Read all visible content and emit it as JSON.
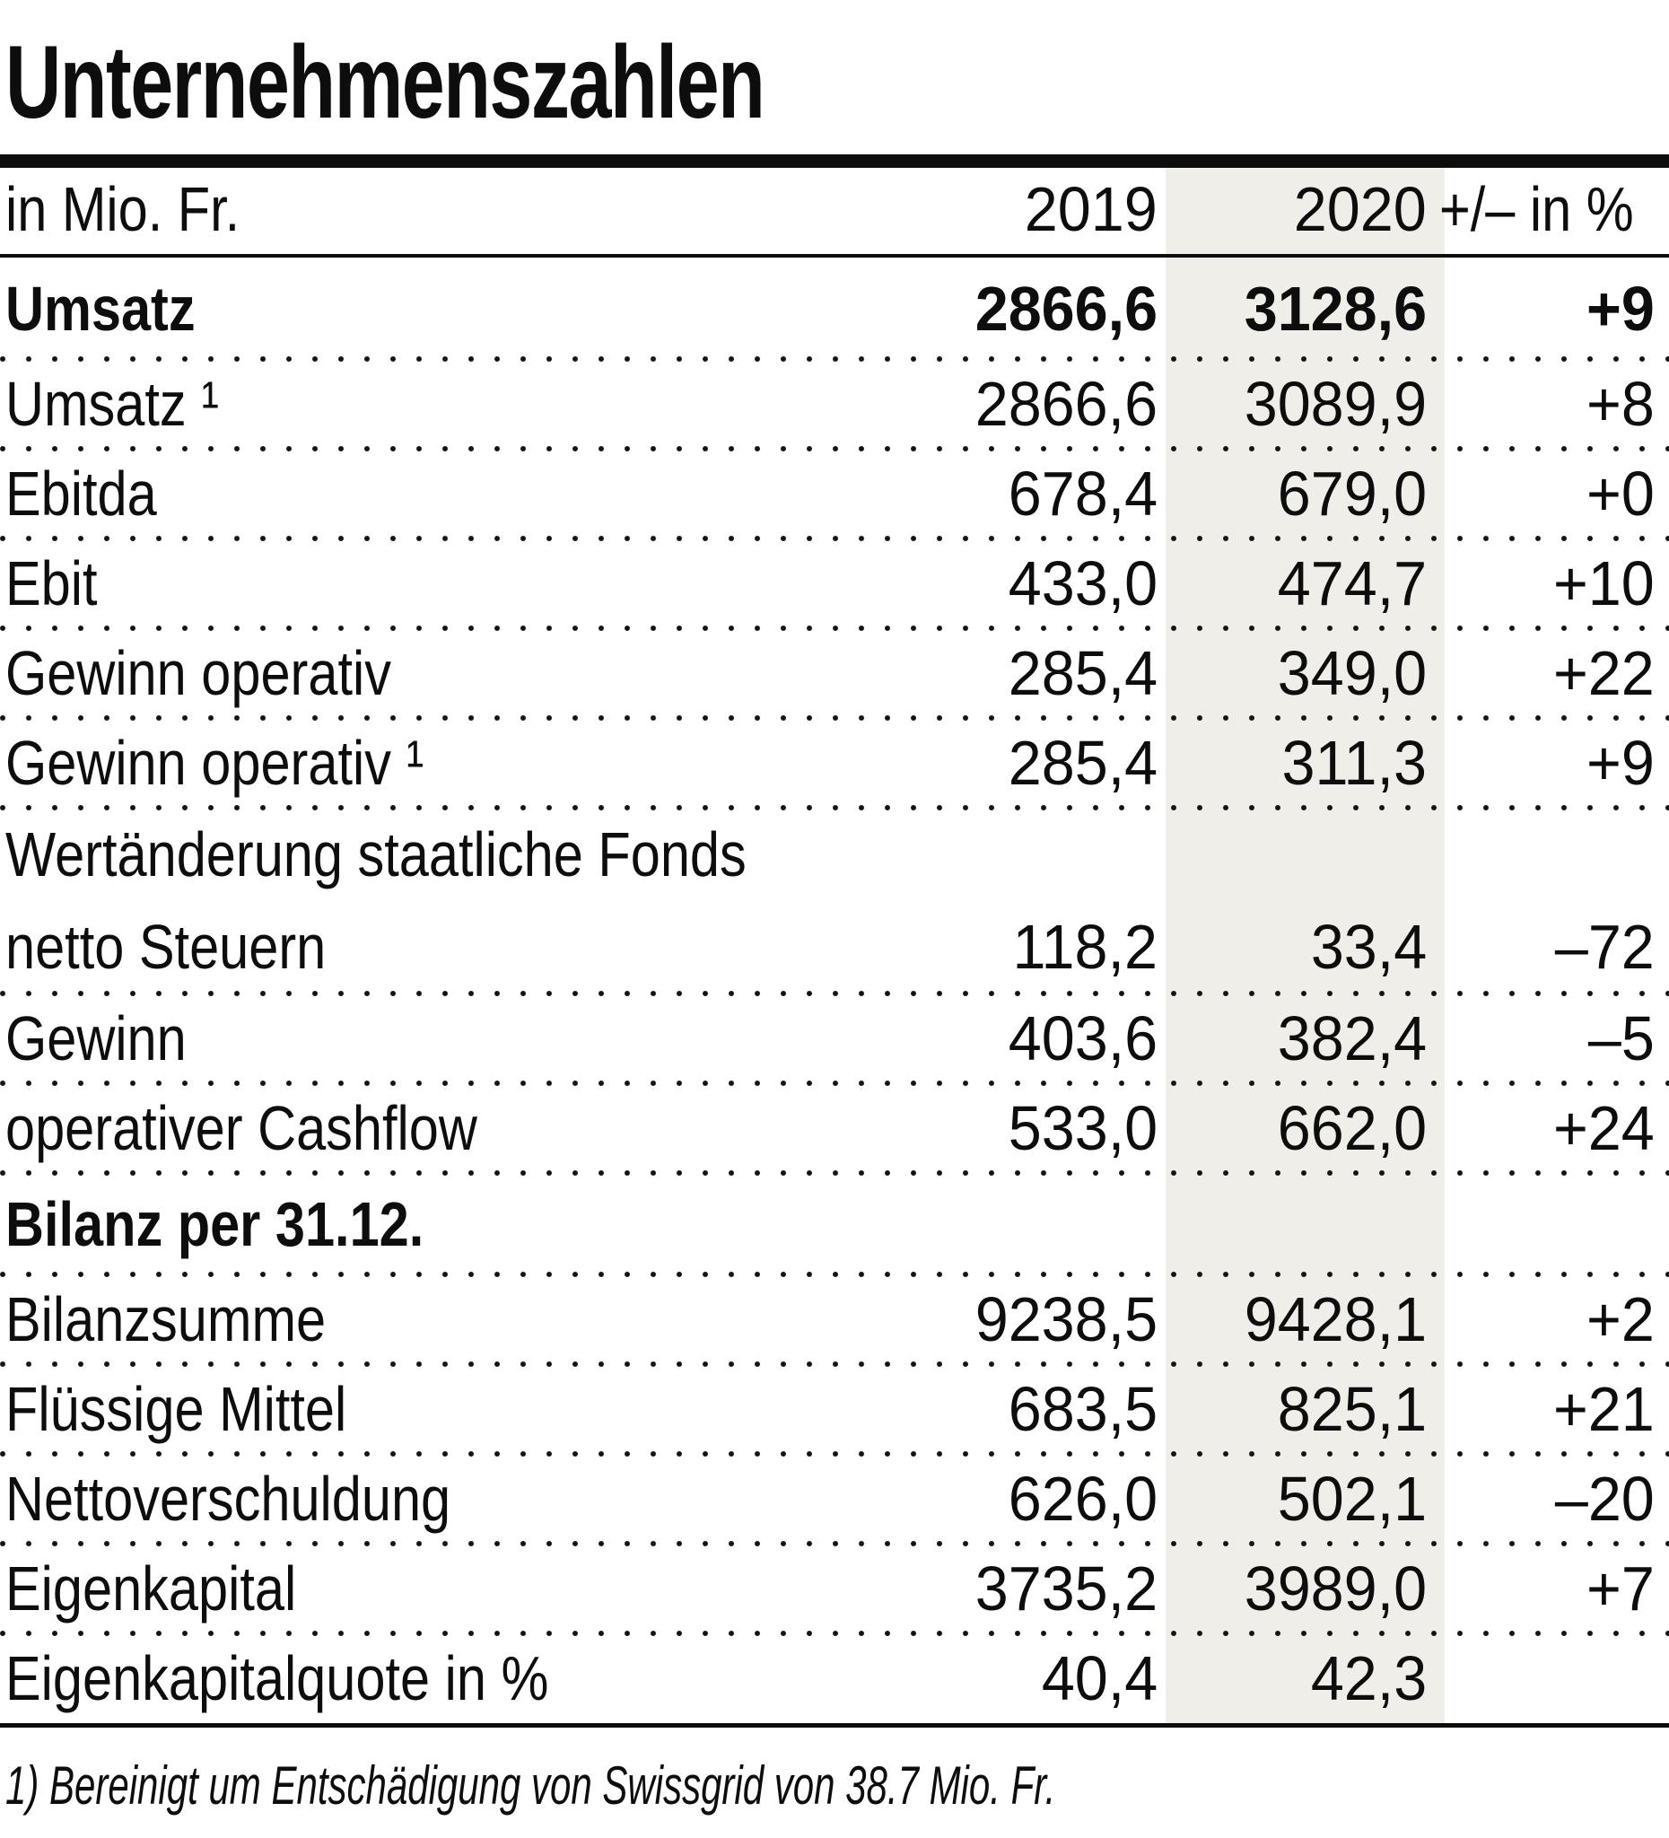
{
  "colors": {
    "band": "#F0EEE8",
    "text": "#0D0D0D",
    "rule": "#0D0D0D"
  },
  "chart_data": {
    "type": "table",
    "title": "Unternehmenszahlen",
    "unit_label": "in Mio. Fr.",
    "columns": [
      "2019",
      "2020",
      "+/– in %"
    ],
    "rows": [
      {
        "label": "Umsatz",
        "v2019": "2866,6",
        "v2020": "3128,6",
        "chg": "+9"
      },
      {
        "label": "Umsatz ¹",
        "v2019": "2866,6",
        "v2020": "3089,9",
        "chg": "+8"
      },
      {
        "label": "Ebitda",
        "v2019": "678,4",
        "v2020": "679,0",
        "chg": "+0"
      },
      {
        "label": "Ebit",
        "v2019": "433,0",
        "v2020": "474,7",
        "chg": "+10"
      },
      {
        "label": "Gewinn operativ",
        "v2019": "285,4",
        "v2020": "349,0",
        "chg": "+22"
      },
      {
        "label": "Gewinn operativ ¹",
        "v2019": "285,4",
        "v2020": "311,3",
        "chg": "+9"
      },
      {
        "label": "Wertänderung staatliche Fonds",
        "label2": "netto Steuern",
        "v2019": "118,2",
        "v2020": "33,4",
        "chg": "–72"
      },
      {
        "label": "Gewinn",
        "v2019": "403,6",
        "v2020": "382,4",
        "chg": "–5"
      },
      {
        "label": "operativer Cashflow",
        "v2019": "533,0",
        "v2020": "662,0",
        "chg": "+24"
      },
      {
        "label": "Bilanz per 31.12.",
        "v2019": "",
        "v2020": "",
        "chg": ""
      },
      {
        "label": "Bilanzsumme",
        "v2019": "9238,5",
        "v2020": "9428,1",
        "chg": "+2"
      },
      {
        "label": "Flüssige Mittel",
        "v2019": "683,5",
        "v2020": "825,1",
        "chg": "+21"
      },
      {
        "label": "Nettoverschuldung",
        "v2019": "626,0",
        "v2020": "502,1",
        "chg": "–20"
      },
      {
        "label": "Eigenkapital",
        "v2019": "3735,2",
        "v2020": "3989,0",
        "chg": "+7"
      },
      {
        "label": "Eigenkapitalquote in %",
        "v2019": "40,4",
        "v2020": "42,3",
        "chg": ""
      }
    ],
    "footnote": "1) Bereinigt um Entschädigung von Swissgrid von 38.7 Mio. Fr."
  }
}
